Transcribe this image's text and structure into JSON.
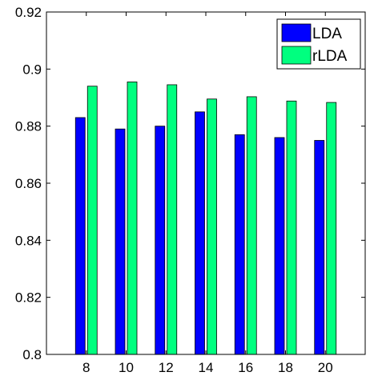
{
  "chart_data": {
    "type": "bar",
    "categories": [
      "8",
      "10",
      "12",
      "14",
      "16",
      "18",
      "20"
    ],
    "series": [
      {
        "name": "LDA",
        "color": "#0000ff",
        "values": [
          0.883,
          0.879,
          0.88,
          0.885,
          0.877,
          0.876,
          0.875
        ]
      },
      {
        "name": "rLDA",
        "color": "#00ff7f",
        "values": [
          0.894,
          0.8955,
          0.8945,
          0.8895,
          0.8903,
          0.8888,
          0.8883
        ]
      }
    ],
    "title": "",
    "xlabel": "",
    "ylabel": "",
    "ylim": [
      0.8,
      0.92
    ],
    "yticks": [
      "0.8",
      "0.82",
      "0.84",
      "0.86",
      "0.88",
      "0.9",
      "0.92"
    ],
    "legend_position": "top-right",
    "grid": false
  }
}
